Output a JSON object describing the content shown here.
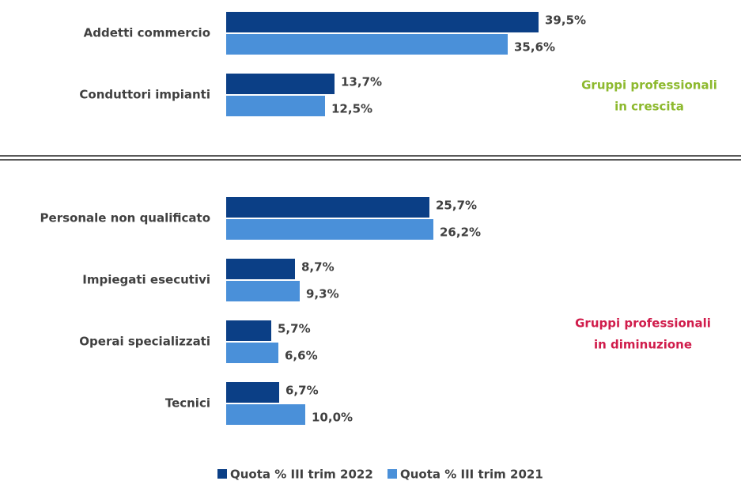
{
  "chart_data": [
    {
      "type": "bar",
      "orientation": "horizontal",
      "categories": [
        "Addetti commercio",
        "Conduttori impianti"
      ],
      "series": [
        {
          "name": "Quota % III trim 2022",
          "color": "#0b3f86",
          "values": [
            39.5,
            13.7
          ],
          "value_labels": [
            "39,5%",
            "13,7%"
          ]
        },
        {
          "name": "Quota % III trim 2021",
          "color": "#4a90d9",
          "values": [
            35.6,
            12.5
          ],
          "value_labels": [
            "35,6%",
            "12,5%"
          ]
        }
      ],
      "annotation": [
        "Gruppi professionali",
        "in crescita"
      ],
      "annotation_color": "#8db92e"
    },
    {
      "type": "bar",
      "orientation": "horizontal",
      "categories": [
        "Personale non qualificato",
        "Impiegati esecutivi",
        "Operai specializzati",
        "Tecnici"
      ],
      "series": [
        {
          "name": "Quota % III trim 2022",
          "color": "#0b3f86",
          "values": [
            25.7,
            8.7,
            5.7,
            6.7
          ],
          "value_labels": [
            "25,7%",
            "8,7%",
            "5,7%",
            "6,7%"
          ]
        },
        {
          "name": "Quota % III trim 2021",
          "color": "#4a90d9",
          "values": [
            26.2,
            9.3,
            6.6,
            10.0
          ],
          "value_labels": [
            "26,2%",
            "9,3%",
            "6,6%",
            "10,0%"
          ]
        }
      ],
      "annotation": [
        "Gruppi professionali",
        "in diminuzione"
      ],
      "annotation_color": "#d01c4b"
    }
  ]
}
